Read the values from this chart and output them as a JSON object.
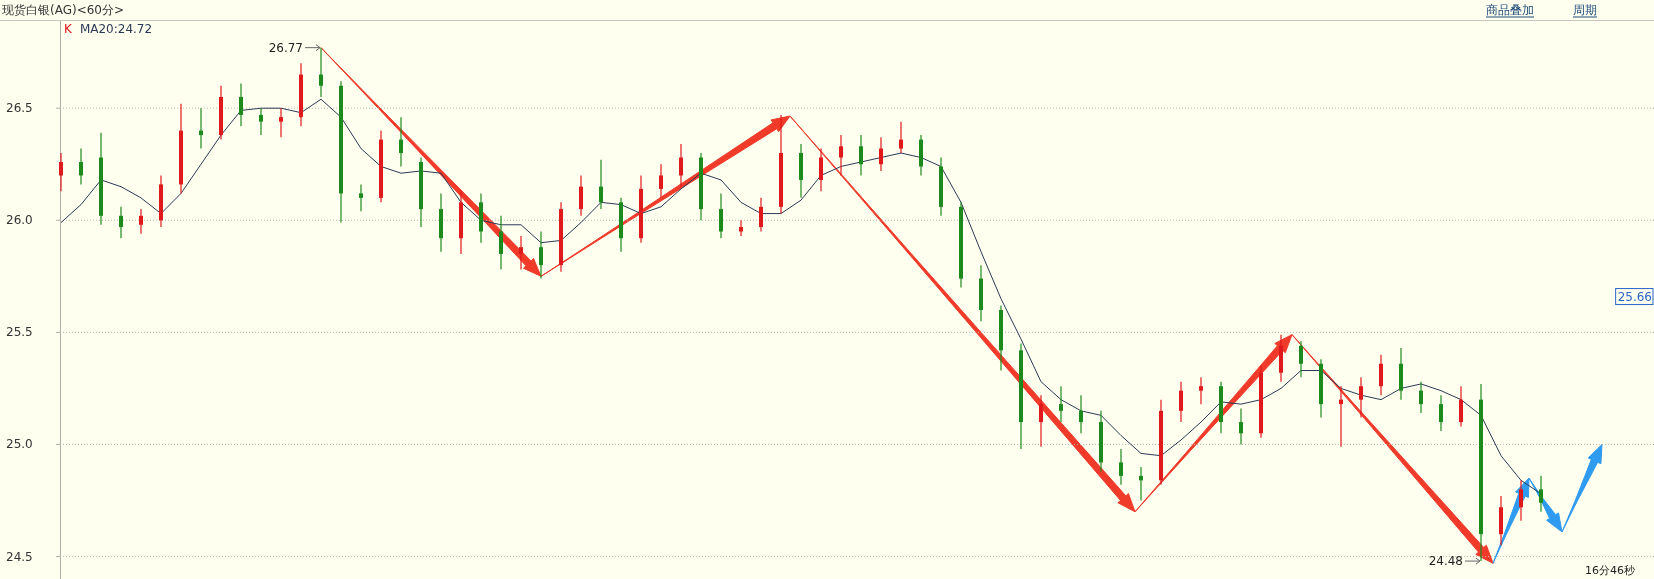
{
  "chart_data": {
    "type": "candlestick",
    "title": "现货白银(AG)<60分>",
    "categories": [
      null,
      null,
      null,
      null,
      null,
      null,
      null,
      null,
      null,
      null,
      null,
      null,
      null,
      null,
      null,
      null,
      null,
      null,
      null,
      null,
      null,
      null,
      null,
      null,
      null,
      null,
      null,
      null,
      null,
      null,
      null,
      null,
      null,
      null,
      null,
      null,
      null,
      null,
      null,
      null,
      null,
      null,
      null,
      null,
      null,
      null,
      null,
      null,
      null,
      null,
      null,
      null,
      null,
      null,
      null,
      null,
      null,
      null,
      null,
      null,
      null,
      null,
      null,
      null,
      null,
      null,
      null,
      null,
      null,
      null,
      null,
      null,
      null,
      null,
      null
    ],
    "series": [
      {
        "name": "K",
        "ohlc": [
          [
            26.2,
            26.3,
            26.13,
            26.26
          ],
          [
            26.26,
            26.32,
            26.16,
            26.2
          ],
          [
            26.28,
            26.39,
            25.98,
            26.02
          ],
          [
            26.02,
            26.06,
            25.92,
            25.97
          ],
          [
            25.98,
            26.05,
            25.94,
            26.02
          ],
          [
            26.0,
            26.2,
            25.97,
            26.16
          ],
          [
            26.16,
            26.52,
            26.12,
            26.4
          ],
          [
            26.4,
            26.5,
            26.32,
            26.38
          ],
          [
            26.38,
            26.6,
            26.36,
            26.55
          ],
          [
            26.55,
            26.61,
            26.42,
            26.47
          ],
          [
            26.47,
            26.5,
            26.38,
            26.44
          ],
          [
            26.44,
            26.5,
            26.37,
            26.46
          ],
          [
            26.46,
            26.7,
            26.42,
            26.65
          ],
          [
            26.65,
            26.77,
            26.55,
            26.6
          ],
          [
            26.6,
            26.62,
            25.99,
            26.12
          ],
          [
            26.12,
            26.16,
            26.04,
            26.1
          ],
          [
            26.1,
            26.4,
            26.08,
            26.36
          ],
          [
            26.36,
            26.46,
            26.24,
            26.3
          ],
          [
            26.26,
            26.28,
            25.97,
            26.05
          ],
          [
            26.05,
            26.12,
            25.86,
            25.92
          ],
          [
            25.92,
            26.13,
            25.85,
            26.08
          ],
          [
            26.08,
            26.12,
            25.9,
            25.95
          ],
          [
            25.95,
            26.02,
            25.78,
            25.85
          ],
          [
            25.85,
            25.93,
            25.78,
            25.88
          ],
          [
            25.88,
            25.95,
            25.74,
            25.8
          ],
          [
            25.8,
            26.08,
            25.77,
            26.05
          ],
          [
            26.05,
            26.2,
            26.02,
            26.15
          ],
          [
            26.15,
            26.27,
            26.05,
            26.08
          ],
          [
            26.08,
            26.1,
            25.86,
            25.92
          ],
          [
            25.92,
            26.2,
            25.9,
            26.14
          ],
          [
            26.14,
            26.25,
            26.1,
            26.2
          ],
          [
            26.2,
            26.34,
            26.15,
            26.28
          ],
          [
            26.28,
            26.3,
            26.0,
            26.05
          ],
          [
            26.05,
            26.12,
            25.92,
            25.95
          ],
          [
            25.95,
            26.0,
            25.93,
            25.97
          ],
          [
            25.97,
            26.1,
            25.95,
            26.06
          ],
          [
            26.06,
            26.47,
            26.03,
            26.3
          ],
          [
            26.3,
            26.34,
            26.1,
            26.18
          ],
          [
            26.18,
            26.32,
            26.13,
            26.28
          ],
          [
            26.28,
            26.38,
            26.2,
            26.33
          ],
          [
            26.33,
            26.38,
            26.2,
            26.25
          ],
          [
            26.25,
            26.37,
            26.22,
            26.32
          ],
          [
            26.32,
            26.44,
            26.3,
            26.36
          ],
          [
            26.36,
            26.38,
            26.2,
            26.24
          ],
          [
            26.24,
            26.28,
            26.02,
            26.06
          ],
          [
            26.06,
            26.08,
            25.7,
            25.74
          ],
          [
            25.74,
            25.8,
            25.55,
            25.6
          ],
          [
            25.6,
            25.62,
            25.33,
            25.42
          ],
          [
            25.42,
            25.45,
            24.98,
            25.1
          ],
          [
            25.1,
            25.22,
            24.99,
            25.18
          ],
          [
            25.18,
            25.26,
            25.1,
            25.15
          ],
          [
            25.15,
            25.22,
            25.05,
            25.1
          ],
          [
            25.1,
            25.15,
            24.88,
            24.92
          ],
          [
            24.92,
            24.98,
            24.82,
            24.86
          ],
          [
            24.86,
            24.9,
            24.75,
            24.84
          ],
          [
            24.84,
            25.2,
            24.82,
            25.15
          ],
          [
            25.15,
            25.28,
            25.1,
            25.24
          ],
          [
            25.24,
            25.3,
            25.18,
            25.26
          ],
          [
            25.26,
            25.28,
            25.05,
            25.1
          ],
          [
            25.1,
            25.16,
            25.0,
            25.05
          ],
          [
            25.05,
            25.35,
            25.03,
            25.32
          ],
          [
            25.32,
            25.49,
            25.28,
            25.44
          ],
          [
            25.44,
            25.46,
            25.3,
            25.36
          ],
          [
            25.36,
            25.38,
            25.12,
            25.18
          ],
          [
            25.18,
            25.26,
            24.99,
            25.2
          ],
          [
            25.2,
            25.3,
            25.12,
            25.26
          ],
          [
            25.26,
            25.4,
            25.22,
            25.36
          ],
          [
            25.36,
            25.43,
            25.2,
            25.24
          ],
          [
            25.24,
            25.28,
            25.14,
            25.18
          ],
          [
            25.18,
            25.22,
            25.06,
            25.1
          ],
          [
            25.1,
            25.26,
            25.08,
            25.2
          ],
          [
            25.2,
            25.27,
            24.48,
            24.6
          ],
          [
            24.6,
            24.77,
            24.55,
            24.72
          ],
          [
            24.72,
            24.84,
            24.66,
            24.8
          ],
          [
            24.8,
            24.86,
            24.7,
            24.74
          ]
        ],
        "colors": [
          "#e0191c",
          "#1c8a1c",
          "#1c8a1c",
          "#1c8a1c",
          "#e0191c",
          "#e0191c",
          "#e0191c",
          "#1c8a1c",
          "#e0191c",
          "#1c8a1c",
          "#1c8a1c",
          "#e0191c",
          "#e0191c",
          "#1c8a1c",
          "#1c8a1c",
          "#1c8a1c",
          "#e0191c",
          "#1c8a1c",
          "#1c8a1c",
          "#1c8a1c",
          "#e0191c",
          "#1c8a1c",
          "#1c8a1c",
          "#e0191c",
          "#1c8a1c",
          "#e0191c",
          "#e0191c",
          "#1c8a1c",
          "#1c8a1c",
          "#e0191c",
          "#e0191c",
          "#e0191c",
          "#1c8a1c",
          "#1c8a1c",
          "#e0191c",
          "#e0191c",
          "#e0191c",
          "#1c8a1c",
          "#e0191c",
          "#e0191c",
          "#1c8a1c",
          "#e0191c",
          "#e0191c",
          "#1c8a1c",
          "#1c8a1c",
          "#1c8a1c",
          "#1c8a1c",
          "#1c8a1c",
          "#1c8a1c",
          "#e0191c",
          "#1c8a1c",
          "#1c8a1c",
          "#1c8a1c",
          "#1c8a1c",
          "#1c8a1c",
          "#e0191c",
          "#e0191c",
          "#e0191c",
          "#1c8a1c",
          "#1c8a1c",
          "#e0191c",
          "#e0191c",
          "#1c8a1c",
          "#1c8a1c",
          "#e0191c",
          "#e0191c",
          "#e0191c",
          "#1c8a1c",
          "#1c8a1c",
          "#1c8a1c",
          "#e0191c",
          "#1c8a1c",
          "#e0191c",
          "#e0191c",
          "#1c8a1c"
        ]
      },
      {
        "name": "MA20:24.72",
        "type": "line",
        "color": "#2b3a55",
        "values": [
          25.99,
          26.07,
          26.18,
          26.15,
          26.1,
          26.03,
          26.12,
          26.25,
          26.38,
          26.49,
          26.5,
          26.5,
          26.48,
          26.54,
          26.46,
          26.32,
          26.24,
          26.21,
          26.22,
          26.21,
          26.08,
          26.0,
          25.98,
          25.98,
          25.9,
          25.91,
          25.99,
          26.08,
          26.07,
          26.03,
          26.06,
          26.14,
          26.21,
          26.18,
          26.08,
          26.03,
          26.03,
          26.09,
          26.2,
          26.24,
          26.26,
          26.28,
          26.3,
          26.28,
          26.24,
          26.08,
          25.86,
          25.65,
          25.47,
          25.28,
          25.2,
          25.15,
          25.13,
          25.04,
          24.96,
          24.95,
          25.02,
          25.1,
          25.19,
          25.18,
          25.2,
          25.25,
          25.33,
          25.33,
          25.25,
          25.22,
          25.2,
          25.25,
          25.27,
          25.24,
          25.2,
          25.13,
          24.95,
          24.84,
          24.78
        ]
      }
    ],
    "ylim": [
      24.4,
      26.88
    ],
    "yticks": [
      24.5,
      {
        "value": 25,
        "label": "25.0"
      },
      25.5,
      {
        "value": 26,
        "label": "26.0"
      },
      26.5
    ],
    "grid": "y",
    "legend": "top left",
    "annotations": [
      "26.77",
      "24.48",
      "25.66",
      "16分46秒",
      "商品叠加",
      "周期"
    ]
  }
}
